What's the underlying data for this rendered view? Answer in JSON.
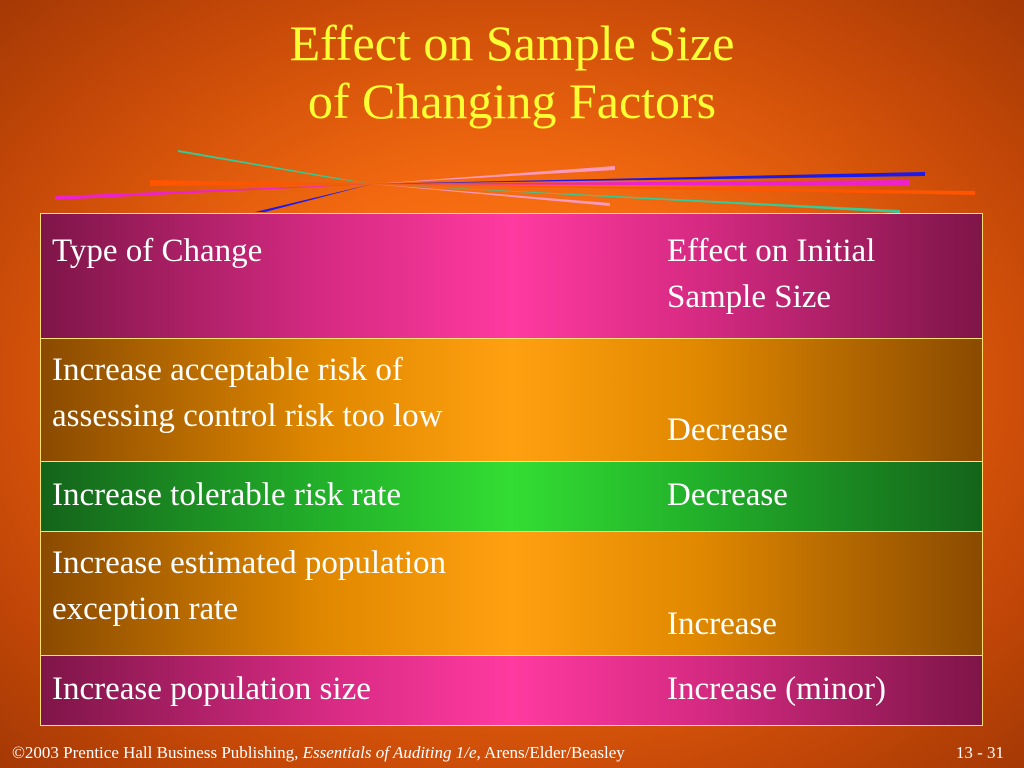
{
  "title": {
    "line1": "Effect on Sample Size",
    "line2": "of Changing Factors"
  },
  "table": {
    "header": {
      "col1": "Type of Change",
      "col2_line1": "Effect on Initial",
      "col2_line2": "Sample Size"
    },
    "rows": [
      {
        "change_line1": "Increase acceptable risk of",
        "change_line2": "assessing control risk too low",
        "effect": "Decrease"
      },
      {
        "change_line1": "Increase tolerable risk rate",
        "change_line2": "",
        "effect": "Decrease"
      },
      {
        "change_line1": "Increase estimated population",
        "change_line2": "exception rate",
        "effect": "Increase"
      },
      {
        "change_line1": "Increase population size",
        "change_line2": "",
        "effect": "Increase (minor)"
      }
    ]
  },
  "footer": {
    "copyright": "©2003 Prentice Hall Business Publishing,",
    "book": "Essentials of Auditing 1/e,",
    "authors": "Arens/Elder/Beasley",
    "slide_number": "13 - 31"
  },
  "colors": {
    "title": "#ffff33",
    "row_pink": "#ff3aa0",
    "row_orange": "#ffa010",
    "row_green": "#33dd33",
    "ray_teal": "#33cc99",
    "ray_blue": "#1a1aee",
    "ray_magenta": "#ee22cc",
    "ray_pink": "#ff99bb",
    "ray_orange": "#ff5500"
  }
}
